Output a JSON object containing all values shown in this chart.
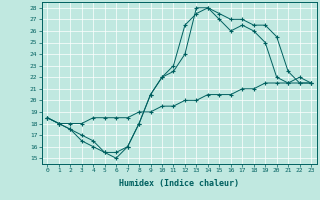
{
  "xlabel": "Humidex (Indice chaleur)",
  "bg_color": "#c0e8e0",
  "line_color": "#006060",
  "xlim": [
    -0.5,
    23.5
  ],
  "ylim": [
    14.5,
    28.5
  ],
  "xticks": [
    0,
    1,
    2,
    3,
    4,
    5,
    6,
    7,
    8,
    9,
    10,
    11,
    12,
    13,
    14,
    15,
    16,
    17,
    18,
    19,
    20,
    21,
    22,
    23
  ],
  "yticks": [
    15,
    16,
    17,
    18,
    19,
    20,
    21,
    22,
    23,
    24,
    25,
    26,
    27,
    28
  ],
  "line1_x": [
    0,
    1,
    2,
    3,
    4,
    5,
    6,
    7,
    8,
    9,
    10,
    11,
    12,
    13,
    14,
    15,
    16,
    17,
    18,
    19,
    20,
    21,
    22,
    23
  ],
  "line1_y": [
    18.5,
    18.0,
    17.5,
    17.0,
    16.5,
    15.5,
    15.0,
    16.0,
    18.0,
    20.5,
    22.0,
    22.5,
    24.0,
    28.0,
    28.0,
    27.0,
    26.0,
    26.5,
    26.0,
    25.0,
    22.0,
    21.5,
    21.5,
    21.5
  ],
  "line2_x": [
    0,
    1,
    2,
    3,
    4,
    5,
    6,
    7,
    8,
    9,
    10,
    11,
    12,
    13,
    14,
    15,
    16,
    17,
    18,
    19,
    20,
    21,
    22,
    23
  ],
  "line2_y": [
    18.5,
    18.0,
    17.5,
    16.5,
    16.0,
    15.5,
    15.5,
    16.0,
    18.0,
    20.5,
    22.0,
    23.0,
    26.5,
    27.5,
    28.0,
    27.5,
    27.0,
    27.0,
    26.5,
    26.5,
    25.5,
    22.5,
    21.5,
    21.5
  ],
  "line3_x": [
    0,
    1,
    2,
    3,
    4,
    5,
    6,
    7,
    8,
    9,
    10,
    11,
    12,
    13,
    14,
    15,
    16,
    17,
    18,
    19,
    20,
    21,
    22,
    23
  ],
  "line3_y": [
    18.5,
    18.0,
    18.0,
    18.0,
    18.5,
    18.5,
    18.5,
    18.5,
    19.0,
    19.0,
    19.5,
    19.5,
    20.0,
    20.0,
    20.5,
    20.5,
    20.5,
    21.0,
    21.0,
    21.5,
    21.5,
    21.5,
    22.0,
    21.5
  ]
}
